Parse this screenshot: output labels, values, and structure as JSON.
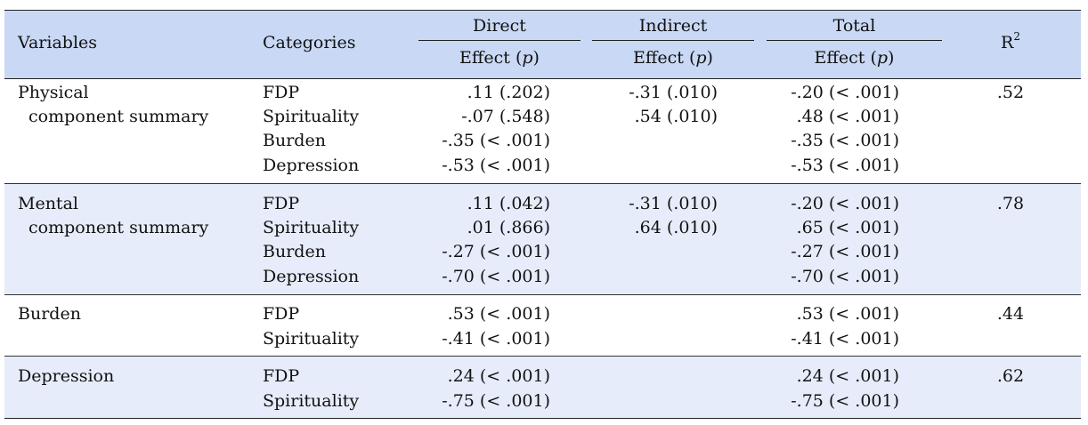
{
  "header": {
    "variables": "Variables",
    "categories": "Categories",
    "direct": "Direct",
    "indirect": "Indirect",
    "total": "Total",
    "effect_prefix": "Effect (",
    "effect_p": "p",
    "effect_suffix": ")",
    "r2_base": "R",
    "r2_sup": "2"
  },
  "groups": [
    {
      "variable": [
        "Physical",
        "component summary"
      ],
      "r2": ".52",
      "rows": [
        {
          "category": "FDP",
          "direct": ".11 (.202)",
          "indirect": "-.31 (.010)",
          "total": "-.20 (< .001)"
        },
        {
          "category": "Spirituality",
          "direct": "-.07 (.548)",
          "indirect": ".54 (.010)",
          "total": ".48 (< .001)"
        },
        {
          "category": "Burden",
          "direct": "-.35 (< .001)",
          "indirect": "",
          "total": "-.35 (< .001)"
        },
        {
          "category": "Depression",
          "direct": "-.53 (< .001)",
          "indirect": "",
          "total": "-.53 (< .001)"
        }
      ]
    },
    {
      "variable": [
        "Mental",
        "component summary"
      ],
      "r2": ".78",
      "rows": [
        {
          "category": "FDP",
          "direct": ".11 (.042)",
          "indirect": "-.31 (.010)",
          "total": "-.20 (< .001)"
        },
        {
          "category": "Spirituality",
          "direct": ".01 (.866)",
          "indirect": ".64 (.010)",
          "total": ".65 (< .001)"
        },
        {
          "category": "Burden",
          "direct": "-.27 (< .001)",
          "indirect": "",
          "total": "-.27 (< .001)"
        },
        {
          "category": "Depression",
          "direct": "-.70 (< .001)",
          "indirect": "",
          "total": "-.70 (< .001)"
        }
      ]
    },
    {
      "variable": [
        "Burden"
      ],
      "r2": ".44",
      "rows": [
        {
          "category": "FDP",
          "direct": ".53 (< .001)",
          "indirect": "",
          "total": ".53 (< .001)"
        },
        {
          "category": "Spirituality",
          "direct": "-.41 (< .001)",
          "indirect": "",
          "total": "-.41 (< .001)"
        }
      ]
    },
    {
      "variable": [
        "Depression"
      ],
      "r2": ".62",
      "rows": [
        {
          "category": "FDP",
          "direct": ".24 (< .001)",
          "indirect": "",
          "total": ".24 (< .001)"
        },
        {
          "category": "Spirituality",
          "direct": "-.75 (< .001)",
          "indirect": "",
          "total": "-.75 (< .001)"
        }
      ]
    }
  ]
}
